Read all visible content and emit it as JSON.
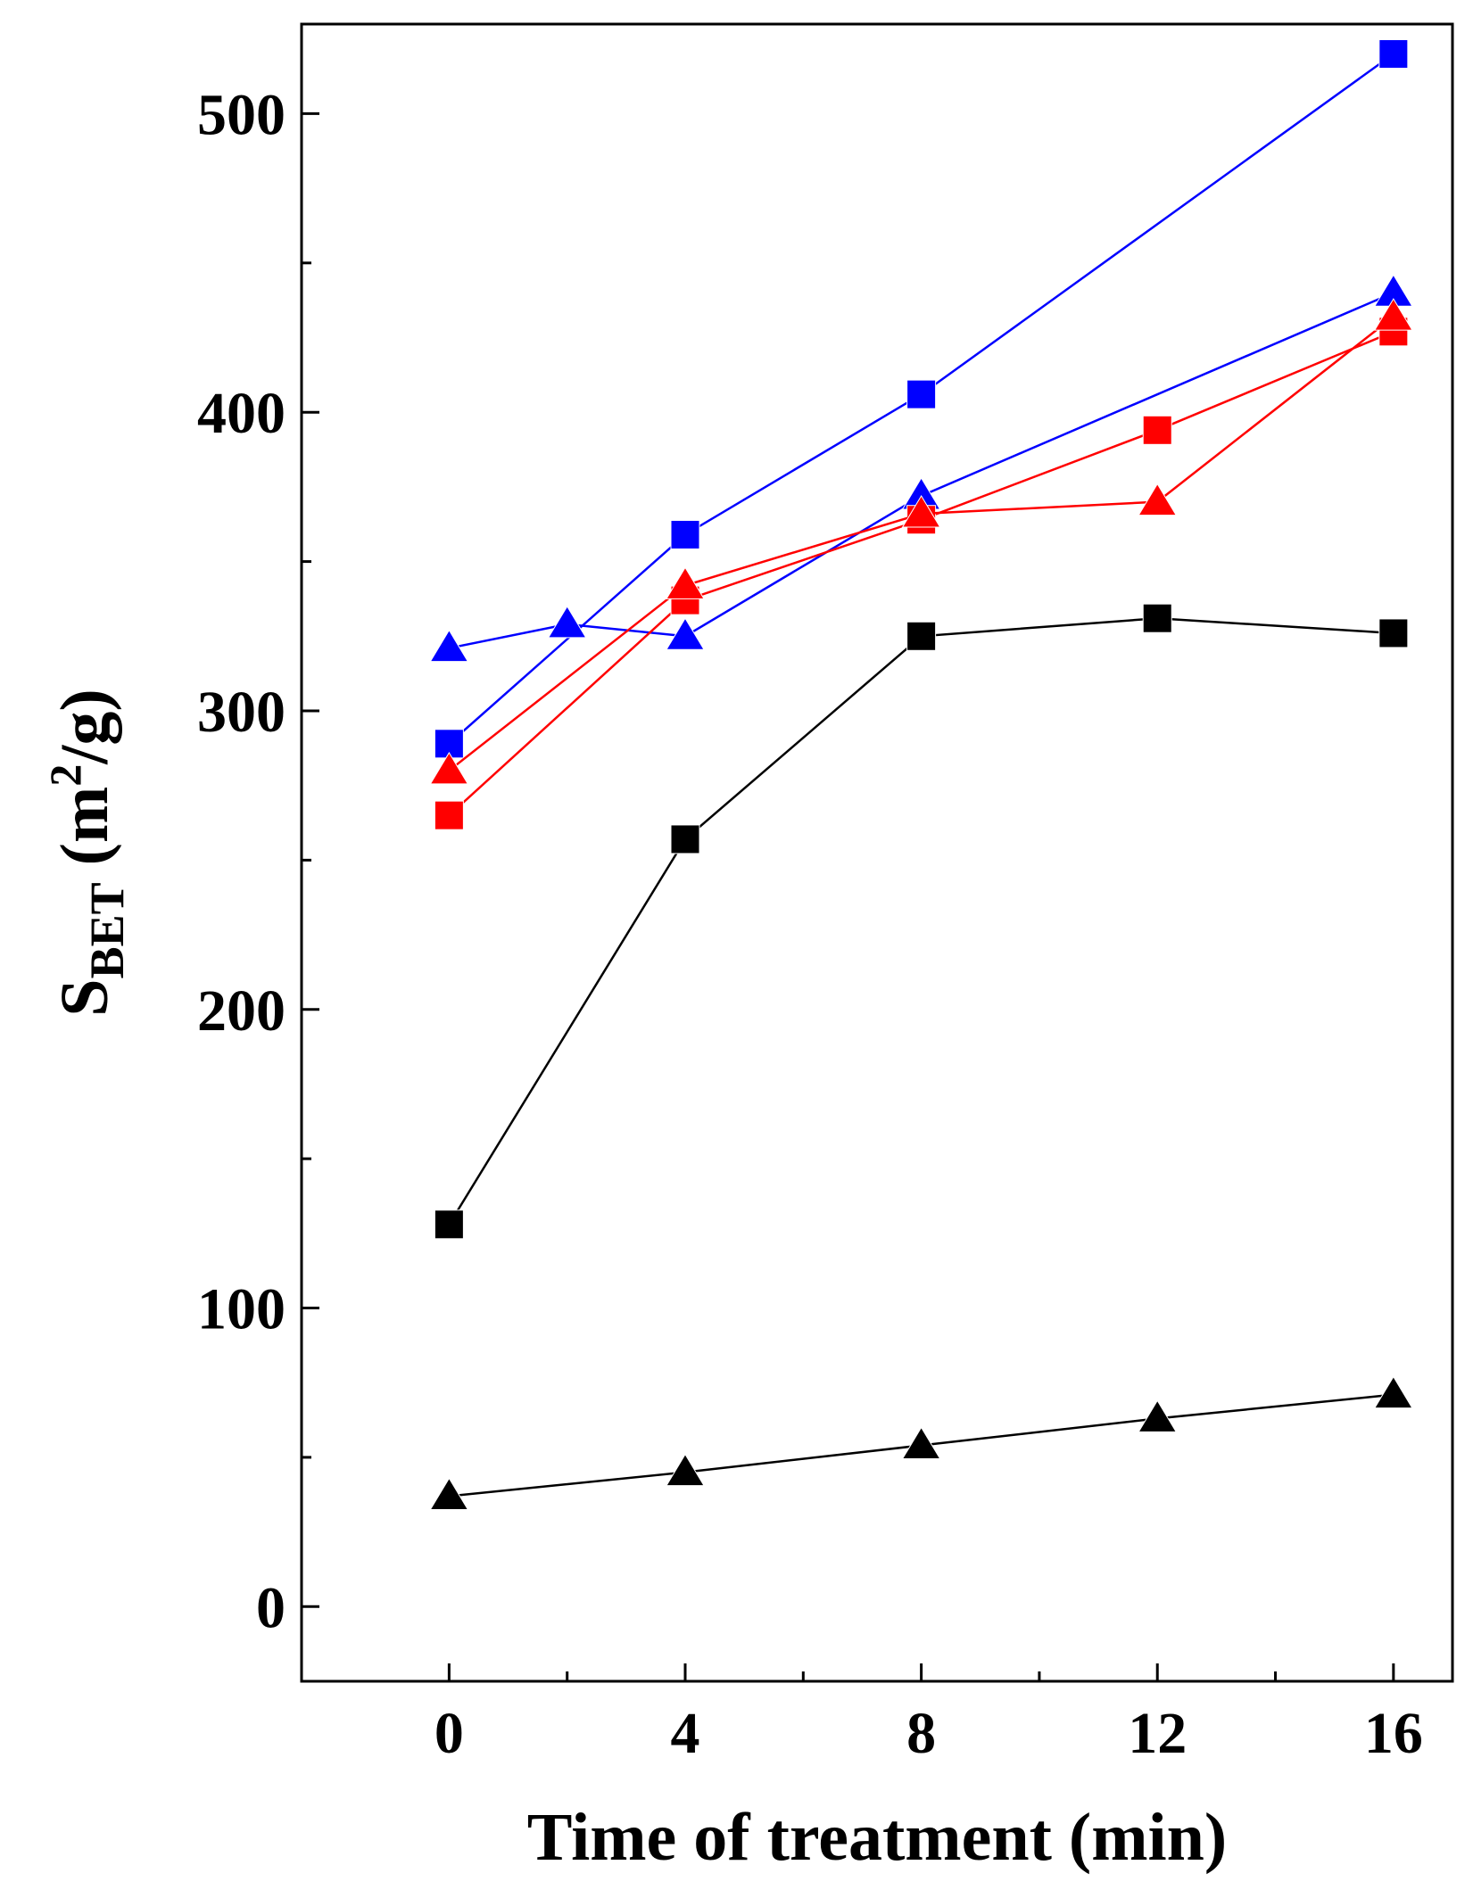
{
  "chart_data": {
    "type": "line",
    "title": "",
    "xlabel": "Time of treatment (min)",
    "ylabel": {
      "main": "S",
      "subscript": "BET",
      "unit_open": " (m",
      "unit_sup": "2",
      "unit_close": "/g)"
    },
    "xlim": [
      -2.5,
      17
    ],
    "ylim": [
      -25,
      530
    ],
    "x_ticks": [
      "0",
      "4",
      "8",
      "12",
      "16"
    ],
    "x_tick_values": [
      0,
      4,
      8,
      12,
      16
    ],
    "x_minor_ticks": [
      2,
      6,
      10,
      14
    ],
    "y_ticks": [
      "0",
      "100",
      "200",
      "300",
      "400",
      "500"
    ],
    "y_tick_values": [
      0,
      100,
      200,
      300,
      400,
      500
    ],
    "y_minor_ticks": [
      50,
      150,
      250,
      350,
      450
    ],
    "grid": false,
    "legend": null,
    "series": [
      {
        "name": "blue squares",
        "color": "#0000ff",
        "marker": "square",
        "x": [
          0,
          4,
          8,
          16
        ],
        "y": [
          289,
          359,
          406,
          520
        ]
      },
      {
        "name": "blue triangles",
        "color": "#0000ff",
        "marker": "triangle",
        "x": [
          0,
          2,
          4,
          8,
          16
        ],
        "y": [
          321,
          329,
          325,
          372,
          440
        ]
      },
      {
        "name": "red squares",
        "color": "#ff0000",
        "marker": "square",
        "x": [
          0,
          4,
          8,
          12,
          16
        ],
        "y": [
          265,
          337,
          364,
          394,
          427
        ]
      },
      {
        "name": "red triangles",
        "color": "#ff0000",
        "marker": "triangle",
        "x": [
          0,
          4,
          8,
          12,
          16
        ],
        "y": [
          280,
          342,
          366,
          370,
          432
        ]
      },
      {
        "name": "black squares",
        "color": "#000000",
        "marker": "square",
        "x": [
          0,
          4,
          8,
          12,
          16
        ],
        "y": [
          128,
          257,
          325,
          331,
          326
        ]
      },
      {
        "name": "black triangles",
        "color": "#000000",
        "marker": "triangle",
        "x": [
          0,
          4,
          8,
          12,
          16
        ],
        "y": [
          37,
          45,
          54,
          63,
          71
        ]
      }
    ]
  }
}
